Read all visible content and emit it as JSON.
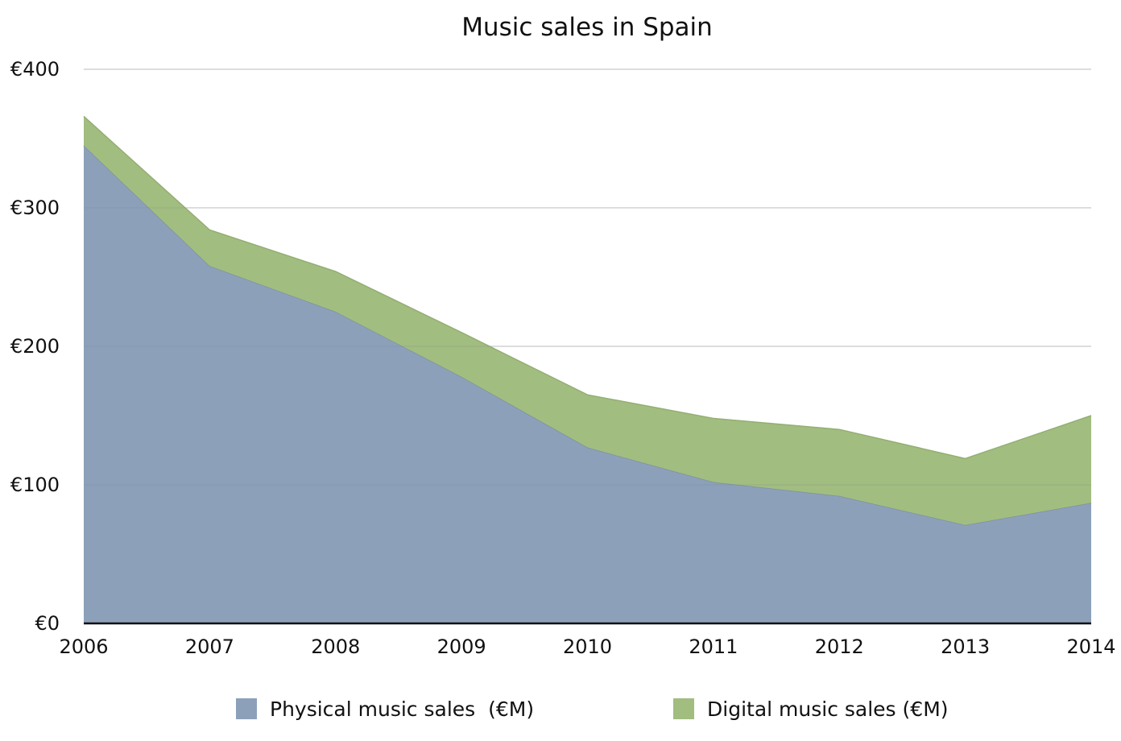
{
  "chart_data": {
    "type": "area",
    "stacked": true,
    "title": "Music sales in Spain",
    "xlabel": "",
    "ylabel": "",
    "x": [
      2006,
      2007,
      2008,
      2009,
      2010,
      2011,
      2012,
      2013,
      2014
    ],
    "x_tick_labels": [
      "2006",
      "2007",
      "2008",
      "2009",
      "2010",
      "2011",
      "2012",
      "2013",
      "2014"
    ],
    "ylim": [
      0,
      400
    ],
    "y_ticks": [
      0,
      100,
      200,
      300,
      400
    ],
    "y_tick_labels": [
      "€0",
      "€100",
      "€200",
      "€300",
      "€400"
    ],
    "grid": true,
    "legend_position": "bottom",
    "series": [
      {
        "name": "Physical music sales  (€M)",
        "color": "#8ca1b9",
        "values": [
          345,
          258,
          225,
          178,
          127,
          102,
          92,
          71,
          87
        ]
      },
      {
        "name": "Digital music sales (€M)",
        "color": "#a2bd80",
        "values": [
          21,
          26,
          29,
          32,
          38,
          46,
          48,
          48,
          63
        ]
      }
    ]
  }
}
